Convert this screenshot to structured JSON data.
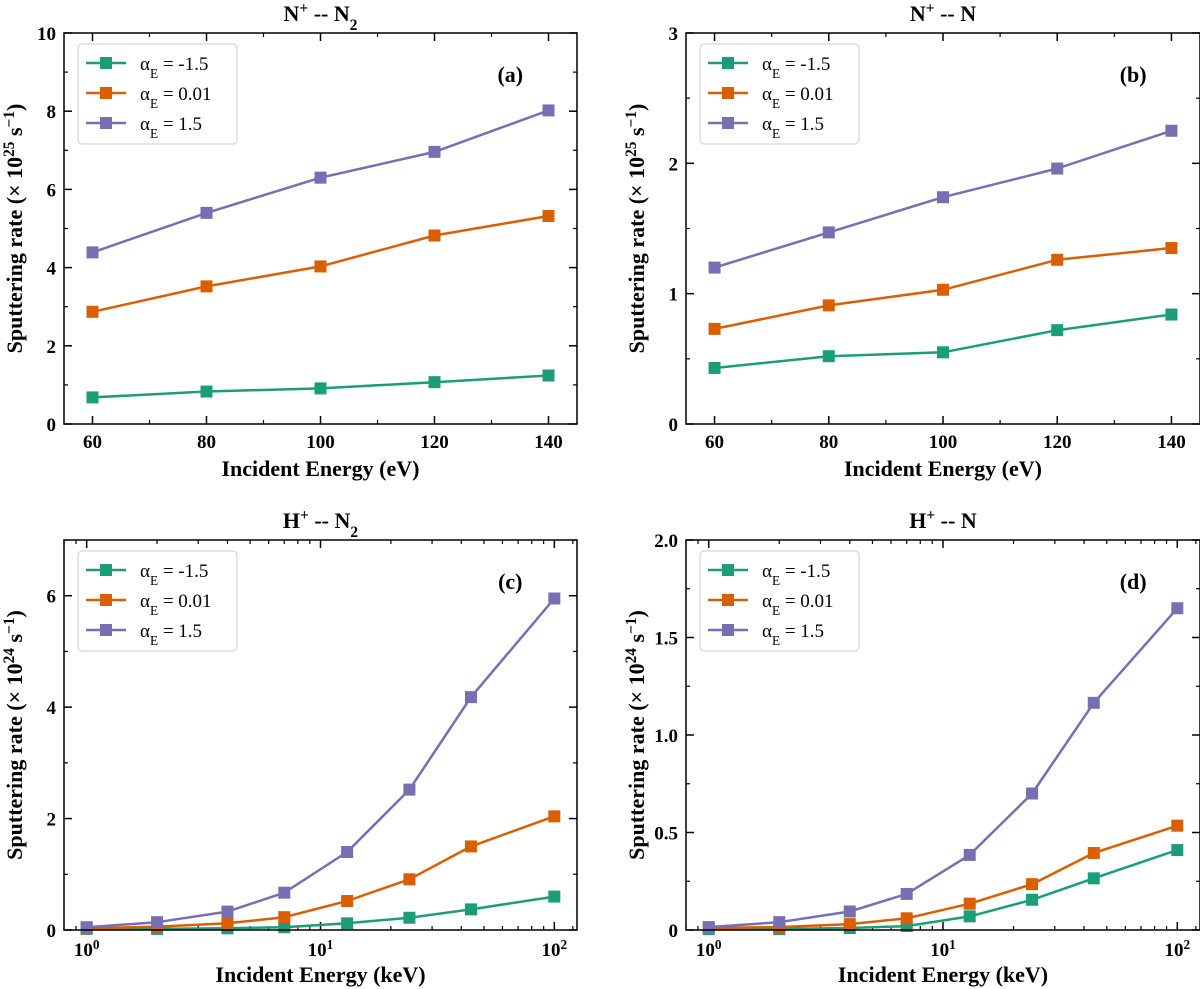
{
  "colors": {
    "series": [
      "#1b9e77",
      "#d95f02",
      "#7570b3"
    ]
  },
  "chart_data": [
    {
      "type": "line",
      "panel": "(a)",
      "title": "N⁺ -- N₂",
      "xlabel": "Incident Energy (eV)",
      "ylabel": "Sputtering rate (× 10²⁵ s⁻¹)",
      "xscale": "linear",
      "xlim": [
        55,
        145
      ],
      "ylim": [
        0,
        10
      ],
      "x": [
        60,
        80,
        100,
        120,
        140
      ],
      "xticks": [
        60,
        80,
        100,
        120,
        140
      ],
      "xtick_labels": [
        "60",
        "80",
        "100",
        "120",
        "140"
      ],
      "yticks": [
        0,
        2,
        4,
        6,
        8,
        10
      ],
      "ytick_labels": [
        "0",
        "2",
        "4",
        "6",
        "8",
        "10"
      ],
      "series": [
        {
          "name": "αE = -1.5",
          "values": [
            0.68,
            0.83,
            0.91,
            1.07,
            1.24
          ]
        },
        {
          "name": "αE = 0.01",
          "values": [
            2.87,
            3.52,
            4.03,
            4.82,
            5.32
          ]
        },
        {
          "name": "αE = 1.5",
          "values": [
            4.39,
            5.4,
            6.3,
            6.96,
            8.02
          ]
        }
      ]
    },
    {
      "type": "line",
      "panel": "(b)",
      "title": "N⁺ -- N",
      "xlabel": "Incident Energy (eV)",
      "ylabel": "Sputtering rate (× 10²⁵ s⁻¹)",
      "xscale": "linear",
      "xlim": [
        55,
        145
      ],
      "ylim": [
        0,
        3
      ],
      "x": [
        60,
        80,
        100,
        120,
        140
      ],
      "xticks": [
        60,
        80,
        100,
        120,
        140
      ],
      "xtick_labels": [
        "60",
        "80",
        "100",
        "120",
        "140"
      ],
      "yticks": [
        0,
        1,
        2,
        3
      ],
      "ytick_labels": [
        "0",
        "1",
        "2",
        "3"
      ],
      "series": [
        {
          "name": "αE = -1.5",
          "values": [
            0.43,
            0.52,
            0.55,
            0.72,
            0.84
          ]
        },
        {
          "name": "αE = 0.01",
          "values": [
            0.73,
            0.91,
            1.03,
            1.26,
            1.35
          ]
        },
        {
          "name": "αE = 1.5",
          "values": [
            1.2,
            1.47,
            1.74,
            1.96,
            2.25
          ]
        }
      ]
    },
    {
      "type": "line",
      "panel": "(c)",
      "title": "H⁺ -- N₂",
      "xlabel": "Incident Energy (keV)",
      "ylabel": "Sputtering rate (× 10²⁴ s⁻¹)",
      "xscale": "log",
      "xlim": [
        0.8,
        125
      ],
      "ylim": [
        0,
        7
      ],
      "x": [
        1,
        2,
        4,
        7,
        13,
        24,
        44,
        100
      ],
      "xticks": [
        1,
        10,
        100
      ],
      "xtick_labels": [
        "10",
        "10",
        "10"
      ],
      "xtick_exponents": [
        "0",
        "1",
        "2"
      ],
      "yticks": [
        0,
        2,
        4,
        6
      ],
      "ytick_labels": [
        "0",
        "2",
        "4",
        "6"
      ],
      "series": [
        {
          "name": "αE = -1.5",
          "values": [
            0.02,
            0.02,
            0.03,
            0.05,
            0.12,
            0.22,
            0.37,
            0.6
          ]
        },
        {
          "name": "αE = 0.01",
          "values": [
            0.03,
            0.06,
            0.12,
            0.23,
            0.52,
            0.91,
            1.5,
            2.04
          ]
        },
        {
          "name": "αE = 1.5",
          "values": [
            0.05,
            0.14,
            0.33,
            0.67,
            1.4,
            2.52,
            4.18,
            5.95
          ]
        }
      ]
    },
    {
      "type": "line",
      "panel": "(d)",
      "title": "H⁺ -- N",
      "xlabel": "Incident Energy (keV)",
      "ylabel": "Sputtering rate (× 10²⁴ s⁻¹)",
      "xscale": "log",
      "xlim": [
        0.8,
        125
      ],
      "ylim": [
        0,
        2.0
      ],
      "x": [
        1,
        2,
        4,
        7,
        13,
        24,
        44,
        100
      ],
      "xticks": [
        1,
        10,
        100
      ],
      "xtick_labels": [
        "10",
        "10",
        "10"
      ],
      "xtick_exponents": [
        "0",
        "1",
        "2"
      ],
      "yticks": [
        0,
        0.5,
        1.0,
        1.5,
        2.0
      ],
      "ytick_labels": [
        "0",
        "0.5",
        "1.0",
        "1.5",
        "2.0"
      ],
      "series": [
        {
          "name": "αE = -1.5",
          "values": [
            0.005,
            0.005,
            0.01,
            0.02,
            0.07,
            0.155,
            0.265,
            0.41
          ]
        },
        {
          "name": "αE = 0.01",
          "values": [
            0.01,
            0.015,
            0.03,
            0.06,
            0.135,
            0.235,
            0.395,
            0.535
          ]
        },
        {
          "name": "αE = 1.5",
          "values": [
            0.015,
            0.04,
            0.095,
            0.185,
            0.385,
            0.7,
            1.165,
            1.65
          ]
        }
      ]
    }
  ]
}
